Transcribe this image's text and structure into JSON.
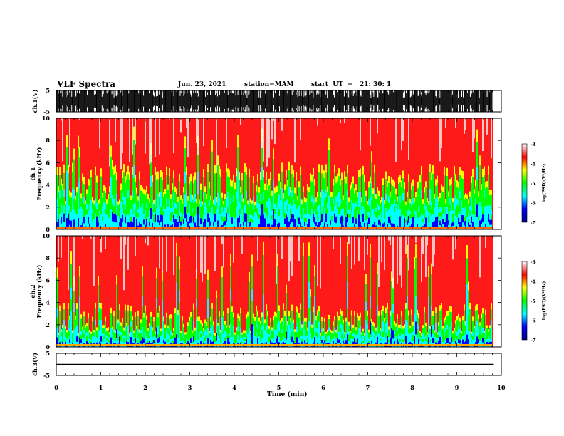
{
  "header": {
    "title": "VLF Spectra",
    "date": "Jun. 23, 2021",
    "station": "station=MAM",
    "start": "start  UT  =   21: 30: 1"
  },
  "chart_data": [
    {
      "type": "line",
      "panel": "ch1_waveform",
      "ylabel": "ch.1(V)",
      "ylim": [
        -5,
        5
      ],
      "y_ticks": [
        "5",
        "-5"
      ],
      "x": [
        0,
        10
      ],
      "description_series": "dense broadband impulsive waveform spanning full +/-5 V range",
      "xlim": [
        0,
        10
      ]
    },
    {
      "type": "heatmap",
      "panel": "ch1_spectrogram",
      "ylabel": "ch.1 Frequency (kHz)",
      "ylim": [
        0,
        10
      ],
      "y_ticks": [
        "0",
        "2",
        "4",
        "6",
        "8",
        "10"
      ],
      "xlim": [
        0,
        10
      ],
      "colorbar": {
        "label": "log(PSD)(V²/Hz)",
        "range": [
          -7,
          -3
        ],
        "ticks": [
          "-3",
          "-4",
          "-5",
          "-6",
          "-7"
        ]
      }
    },
    {
      "type": "heatmap",
      "panel": "ch2_spectrogram",
      "ylabel": "ch.2 Frequency (kHz)",
      "ylim": [
        0,
        10
      ],
      "y_ticks": [
        "0",
        "2",
        "4",
        "6",
        "8",
        "10"
      ],
      "xlim": [
        0,
        10
      ],
      "colorbar": {
        "label": "log(PSD)(V²/Hz)",
        "range": [
          -7,
          -3
        ],
        "ticks": [
          "-3",
          "-4",
          "-5",
          "-6",
          "-7"
        ]
      }
    },
    {
      "type": "line",
      "panel": "ch3_waveform",
      "ylabel": "ch.3(V)",
      "ylim": [
        -5,
        5
      ],
      "y_ticks": [
        "5",
        "-5"
      ],
      "x": [
        0,
        9.83
      ],
      "y": [
        0,
        0
      ],
      "xlim": [
        0,
        10
      ]
    }
  ],
  "x_axis": {
    "label": "Time  (min)",
    "ticks": [
      "0",
      "1",
      "2",
      "3",
      "4",
      "5",
      "6",
      "7",
      "8",
      "9",
      "10"
    ]
  },
  "colors": {
    "scale": [
      "#000080",
      "#0000ff",
      "#00ffff",
      "#00ff00",
      "#ffff00",
      "#ff0000",
      "#ffffff"
    ]
  }
}
